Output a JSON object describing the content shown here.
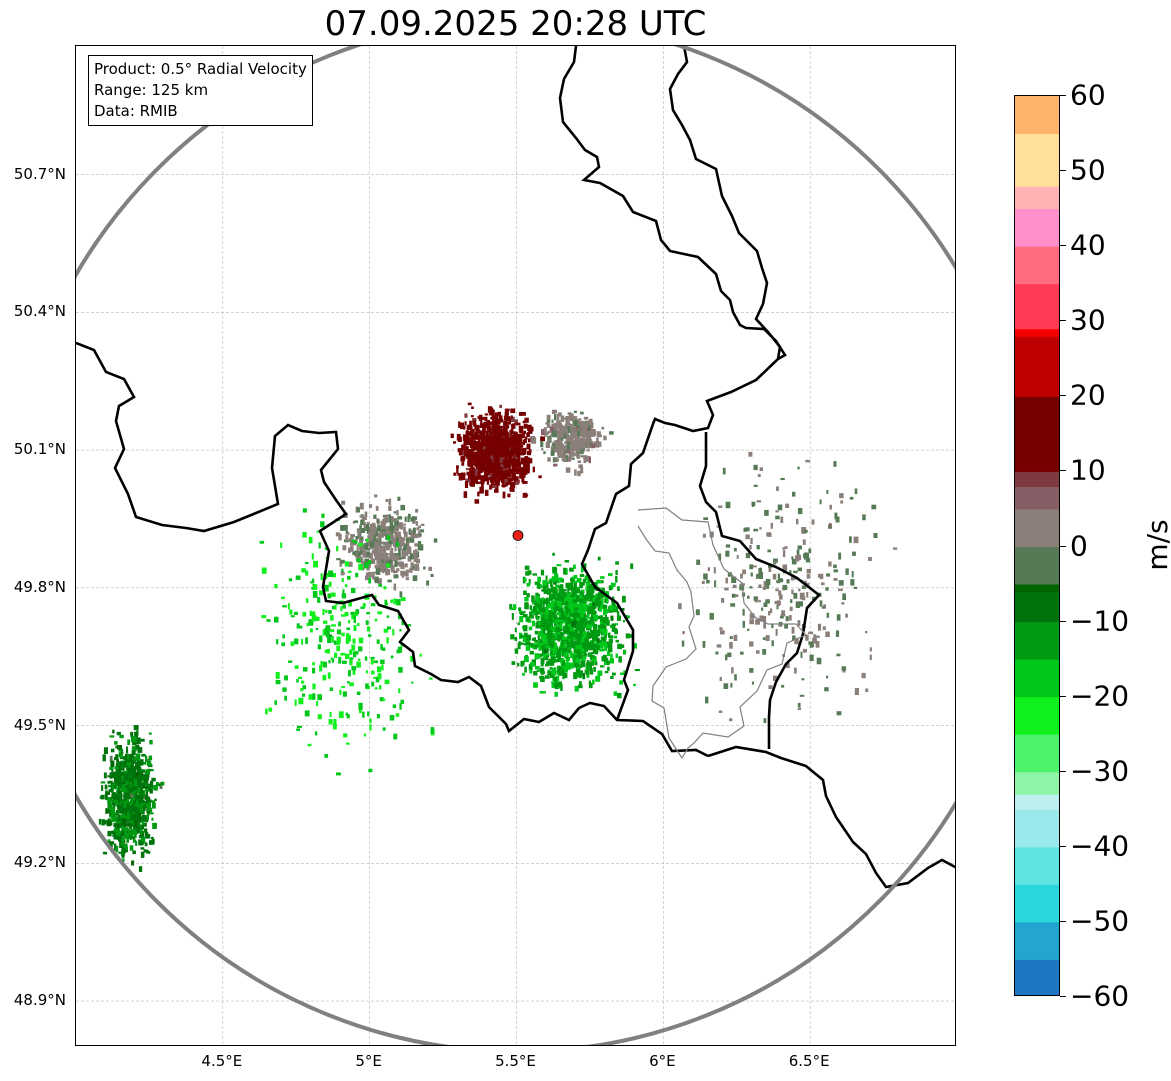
{
  "title": "07.09.2025 20:28 UTC",
  "info_box": {
    "product": "Product: 0.5° Radial Velocity",
    "range": "Range: 125 km",
    "data": "Data: RMIB"
  },
  "map": {
    "lon_range": [
      4.0,
      7.0
    ],
    "lat_range": [
      48.8,
      50.98
    ],
    "lat_ticks": [
      {
        "value": 48.9,
        "label": "48.9°N"
      },
      {
        "value": 49.2,
        "label": "49.2°N"
      },
      {
        "value": 49.5,
        "label": "49.5°N"
      },
      {
        "value": 49.8,
        "label": "49.8°N"
      },
      {
        "value": 50.1,
        "label": "50.1°N"
      },
      {
        "value": 50.4,
        "label": "50.4°N"
      },
      {
        "value": 50.7,
        "label": "50.7°N"
      }
    ],
    "lon_ticks": [
      {
        "value": 4.5,
        "label": "4.5°E"
      },
      {
        "value": 5.0,
        "label": "5°E"
      },
      {
        "value": 5.5,
        "label": "5.5°E"
      },
      {
        "value": 6.0,
        "label": "6°E"
      },
      {
        "value": 6.5,
        "label": "6.5°E"
      }
    ],
    "radar_site": {
      "lon": 5.505,
      "lat": 49.914
    },
    "range_km": 125,
    "grid": true,
    "colors": {
      "border": "#000000",
      "admin_border": "#808080",
      "range_ring": "#808080",
      "site_marker": "#e8201a"
    }
  },
  "colorbar": {
    "label": "m/s",
    "min": -60,
    "max": 60,
    "ticks": [
      {
        "value": 60,
        "label": "60"
      },
      {
        "value": 50,
        "label": "50"
      },
      {
        "value": 40,
        "label": "40"
      },
      {
        "value": 30,
        "label": "30"
      },
      {
        "value": 20,
        "label": "20"
      },
      {
        "value": 10,
        "label": "10"
      },
      {
        "value": 0,
        "label": "0"
      },
      {
        "value": -10,
        "label": "−10"
      },
      {
        "value": -20,
        "label": "−20"
      },
      {
        "value": -30,
        "label": "−30"
      },
      {
        "value": -40,
        "label": "−40"
      },
      {
        "value": -50,
        "label": "−50"
      },
      {
        "value": -60,
        "label": "−60"
      }
    ],
    "stops": [
      {
        "value": -60,
        "color": "#1f77c4"
      },
      {
        "value": -55,
        "color": "#22a6d0"
      },
      {
        "value": -50,
        "color": "#2ad7dc"
      },
      {
        "value": -45,
        "color": "#5fe3e3"
      },
      {
        "value": -40,
        "color": "#9ae9ea"
      },
      {
        "value": -35,
        "color": "#bdeef0"
      },
      {
        "value": -33,
        "color": "#8ef5a8"
      },
      {
        "value": -30,
        "color": "#4df46a"
      },
      {
        "value": -25,
        "color": "#10f01c"
      },
      {
        "value": -20,
        "color": "#00c81a"
      },
      {
        "value": -15,
        "color": "#009a12"
      },
      {
        "value": -10,
        "color": "#00740c"
      },
      {
        "value": -6,
        "color": "#006400"
      },
      {
        "value": -5,
        "color": "#557a55"
      },
      {
        "value": 0,
        "color": "#8b7f7a"
      },
      {
        "value": 5,
        "color": "#865f66"
      },
      {
        "value": 8,
        "color": "#7e3a3e"
      },
      {
        "value": 10,
        "color": "#760000"
      },
      {
        "value": 20,
        "color": "#c00000"
      },
      {
        "value": 28,
        "color": "#f50000"
      },
      {
        "value": 29,
        "color": "#ff3a55"
      },
      {
        "value": 35,
        "color": "#ff6a80"
      },
      {
        "value": 40,
        "color": "#ff8fcb"
      },
      {
        "value": 45,
        "color": "#ffb3b3"
      },
      {
        "value": 48,
        "color": "#ffe09a"
      },
      {
        "value": 55,
        "color": "#ffb46e"
      },
      {
        "value": 60,
        "color": "#ff9a55"
      }
    ]
  },
  "echo_regions": [
    {
      "name": "inbound-core-north",
      "lon": 5.42,
      "lat": 50.1,
      "dlon": 0.17,
      "dlat": 0.12,
      "velocity": 13,
      "count": 900
    },
    {
      "name": "outbound-core-south",
      "lon": 5.68,
      "lat": 49.72,
      "dlon": 0.25,
      "dlat": 0.17,
      "velocity": -14,
      "count": 1200
    },
    {
      "name": "near-zero-northeast",
      "lon": 5.68,
      "lat": 50.13,
      "dlon": 0.14,
      "dlat": 0.08,
      "velocity": 2,
      "count": 300
    },
    {
      "name": "near-zero-west",
      "lon": 5.05,
      "lat": 49.9,
      "dlon": 0.2,
      "dlat": 0.12,
      "velocity": 1,
      "count": 400
    },
    {
      "name": "scatter-east",
      "lon": 6.4,
      "lat": 49.8,
      "dlon": 0.45,
      "dlat": 0.35,
      "velocity": 0,
      "count": 300
    },
    {
      "name": "southwest-band",
      "lon": 4.18,
      "lat": 49.35,
      "dlon": 0.12,
      "dlat": 0.17,
      "velocity": -9,
      "count": 700
    },
    {
      "name": "scatter-west",
      "lon": 4.9,
      "lat": 49.7,
      "dlon": 0.35,
      "dlat": 0.35,
      "velocity": -20,
      "count": 300
    }
  ]
}
